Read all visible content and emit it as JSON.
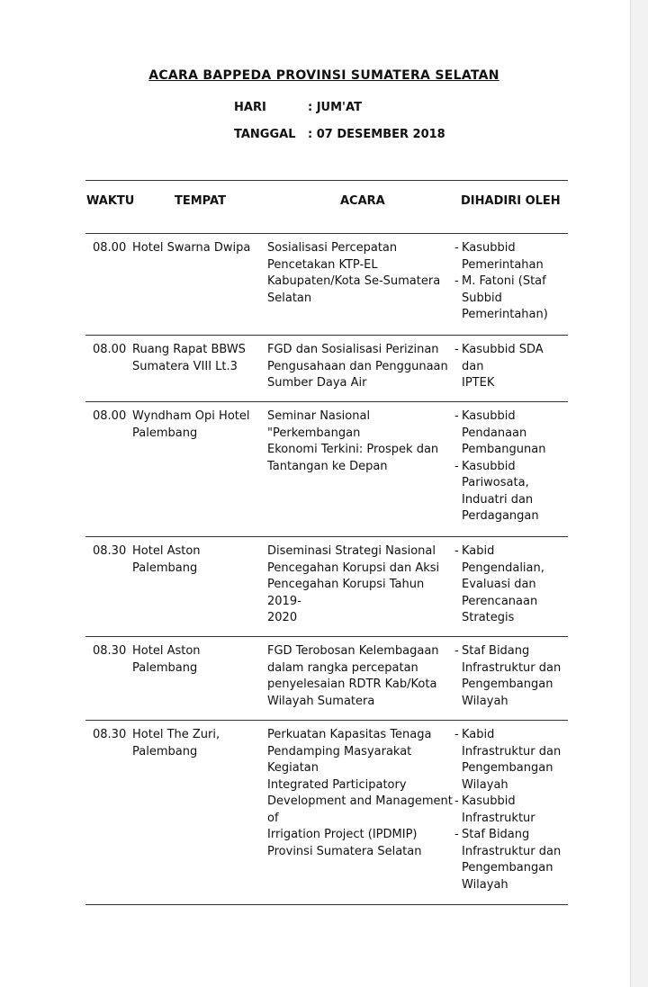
{
  "title": "ACARA BAPPEDA PROVINSI SUMATERA SELATAN",
  "hari_label": "HARI",
  "hari_value": ": JUM'AT",
  "tanggal_label": "TANGGAL",
  "tanggal_value": ": 07 DESEMBER 2018",
  "headers": {
    "waktu": "WAKTU",
    "tempat": "TEMPAT",
    "acara": "ACARA",
    "hadir": "DIHADIRI OLEH"
  },
  "rows": [
    {
      "waktu": "08.00",
      "tempat": "Hotel Swarna Dwipa",
      "acara": "Sosialisasi Percepatan\nPencetakan KTP-EL\nKabupaten/Kota Se-Sumatera\nSelatan",
      "hadir": [
        "Kasubbid\nPemerintahan",
        "M. Fatoni (Staf\nSubbid\nPemerintahan)"
      ]
    },
    {
      "waktu": "08.00",
      "tempat": "Ruang Rapat BBWS\nSumatera VIII Lt.3",
      "acara": "FGD dan Sosialisasi Perizinan\nPengusahaan dan Penggunaan\nSumber Daya Air",
      "hadir": [
        "Kasubbid SDA dan\nIPTEK"
      ]
    },
    {
      "waktu": "08.00",
      "tempat": "Wyndham Opi Hotel\nPalembang",
      "acara": "Seminar Nasional \"Perkembangan\nEkonomi Terkini: Prospek dan\nTantangan ke Depan",
      "hadir": [
        "Kasubbid\nPendanaan\nPembangunan",
        "Kasubbid\nPariwosata,\nInduatri dan\nPerdagangan"
      ]
    },
    {
      "waktu": "08.30",
      "tempat": "Hotel Aston Palembang",
      "acara": "Diseminasi Strategi Nasional\nPencegahan Korupsi dan Aksi\nPencegahan Korupsi Tahun 2019-\n2020",
      "hadir": [
        "Kabid\nPengendalian,\nEvaluasi dan\nPerencanaan\nStrategis"
      ]
    },
    {
      "waktu": "08.30",
      "tempat": "Hotel Aston Palembang",
      "acara": "FGD Terobosan Kelembagaan\ndalam rangka percepatan\npenyelesaian RDTR Kab/Kota\nWilayah Sumatera",
      "hadir": [
        "Staf Bidang\nInfrastruktur dan\nPengembangan\nWilayah"
      ]
    },
    {
      "waktu": "08.30",
      "tempat": "Hotel The Zuri,\nPalembang",
      "acara": "Perkuatan Kapasitas Tenaga\nPendamping Masyarakat Kegiatan\nIntegrated Participatory\nDevelopment and Management of\nIrrigation Project (IPDMIP)\nProvinsi Sumatera Selatan",
      "hadir": [
        "Kabid\nInfrastruktur dan\nPengembangan\nWilayah",
        "Kasubbid\nInfrastruktur",
        "Staf Bidang\nInfrastruktur dan\nPengembangan\nWilayah"
      ]
    }
  ]
}
